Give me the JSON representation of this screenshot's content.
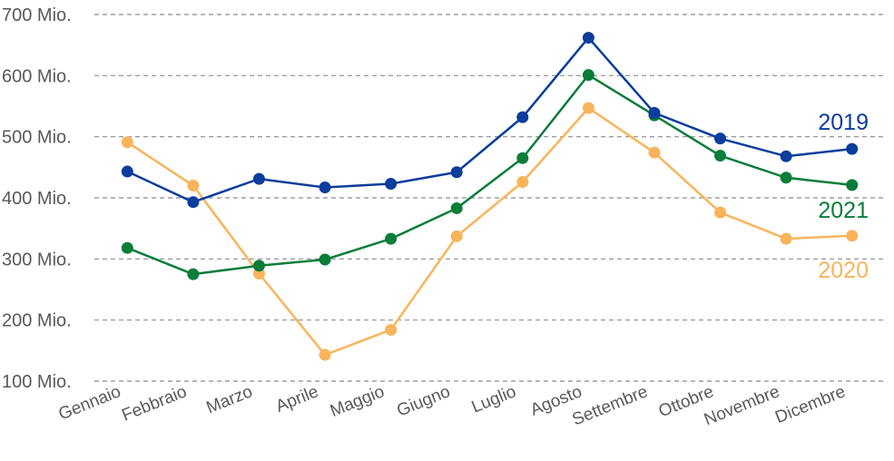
{
  "chart_data": {
    "type": "line",
    "title": "",
    "xlabel": "",
    "ylabel": "",
    "categories": [
      "Gennaio",
      "Febbraio",
      "Marzo",
      "Aprile",
      "Maggio",
      "Giugno",
      "Luglio",
      "Agosto",
      "Settembre",
      "Ottobre",
      "Novembre",
      "Dicembre"
    ],
    "ylim": [
      100,
      700
    ],
    "y_ticks": [
      {
        "value": 100,
        "label": "100 Mio."
      },
      {
        "value": 200,
        "label": "200 Mio."
      },
      {
        "value": 300,
        "label": "300 Mio."
      },
      {
        "value": 400,
        "label": "400 Mio."
      },
      {
        "value": 500,
        "label": "500 Mio."
      },
      {
        "value": 600,
        "label": "600 Mio."
      },
      {
        "value": 700,
        "label": "700 Mio."
      }
    ],
    "grid": true,
    "legend": "inline-right",
    "series": [
      {
        "name": "2019",
        "color": "#0b3d9c",
        "values": [
          443,
          393,
          431,
          417,
          423,
          442,
          532,
          662,
          539,
          497,
          468,
          480
        ]
      },
      {
        "name": "2021",
        "color": "#0a7d3a",
        "values": [
          318,
          275,
          289,
          299,
          333,
          383,
          465,
          601,
          535,
          469,
          433,
          421
        ]
      },
      {
        "name": "2020",
        "color": "#f9b45b",
        "values": [
          491,
          420,
          276,
          143,
          184,
          337,
          426,
          547,
          474,
          376,
          333,
          338
        ]
      }
    ]
  }
}
